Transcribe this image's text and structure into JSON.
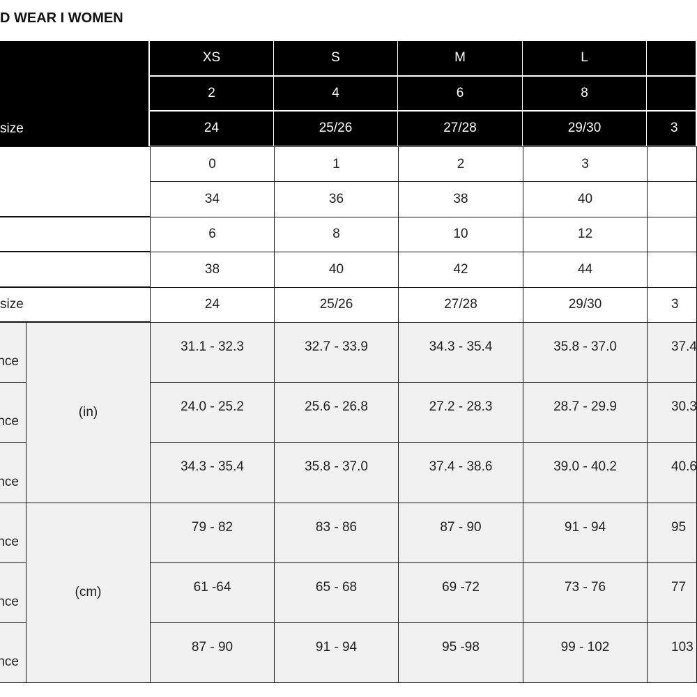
{
  "title": "D WEAR I WOMEN",
  "header_rows": [
    {
      "label": "",
      "values": [
        "XS",
        "S",
        "M",
        "L",
        ""
      ]
    },
    {
      "label": "",
      "values": [
        "2",
        "4",
        "6",
        "8",
        ""
      ]
    },
    {
      "label": "size",
      "values": [
        "24",
        "25/26",
        "27/28",
        "29/30",
        "3"
      ]
    }
  ],
  "size_rows": [
    {
      "label": "",
      "values": [
        "0",
        "1",
        "2",
        "3",
        ""
      ]
    },
    {
      "label": "",
      "values": [
        "34",
        "36",
        "38",
        "40",
        ""
      ]
    },
    {
      "label": "",
      "values": [
        "6",
        "8",
        "10",
        "12",
        ""
      ]
    },
    {
      "label": "",
      "values": [
        "38",
        "40",
        "42",
        "44",
        ""
      ]
    },
    {
      "label": "size",
      "values": [
        "24",
        "25/26",
        "27/28",
        "29/30",
        "3"
      ]
    }
  ],
  "measurement_groups": [
    {
      "unit": "(in)",
      "rows": [
        {
          "label": "nce",
          "values": [
            "31.1 -  32.3",
            "32.7 -  33.9",
            "34.3 - 35.4",
            "35.8 - 37.0",
            "37.4"
          ]
        },
        {
          "label": "nce",
          "values": [
            "24.0 - 25.2",
            "25.6 - 26.8",
            "27.2 - 28.3",
            "28.7 - 29.9",
            "30.3"
          ]
        },
        {
          "label": "nce",
          "values": [
            "34.3 - 35.4",
            "35.8 - 37.0",
            "37.4 - 38.6",
            "39.0 - 40.2",
            "40.6"
          ]
        }
      ]
    },
    {
      "unit": "(cm)",
      "rows": [
        {
          "label": "nce",
          "values": [
            "79 - 82",
            "83 - 86",
            "87 - 90",
            "91 - 94",
            "95"
          ]
        },
        {
          "label": "nce",
          "values": [
            "61 -64",
            "65 - 68",
            "69 -72",
            "73 - 76",
            "77"
          ]
        },
        {
          "label": "nce",
          "values": [
            "87 - 90",
            "91 - 94",
            "95 -98",
            "99 - 102",
            "103"
          ]
        }
      ]
    }
  ]
}
